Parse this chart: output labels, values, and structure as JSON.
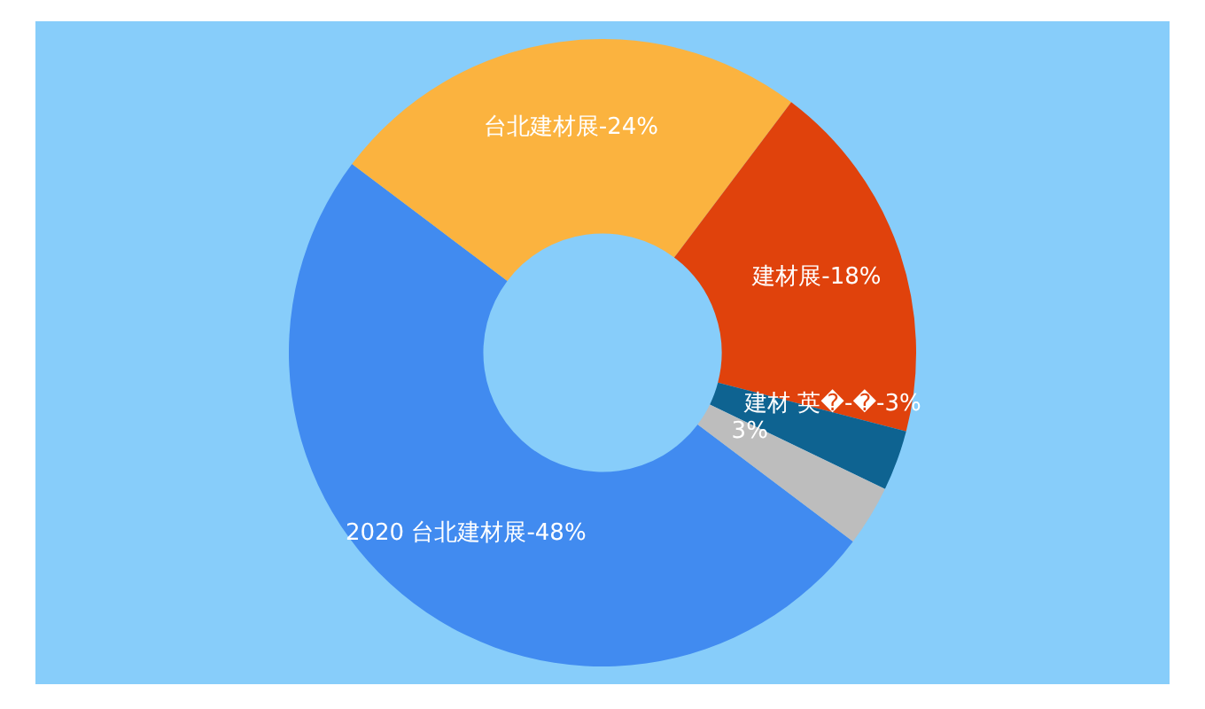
{
  "chart_data": {
    "type": "donut",
    "categories": [
      "2020 台北建材展-",
      "台北建材展-",
      "建材展-",
      "建材 英�-�-",
      null
    ],
    "values": [
      48,
      24,
      18,
      3,
      3
    ],
    "colors": [
      "#418bf0",
      "#fbb33f",
      "#e0420c",
      "#0e6391",
      "#bdbdbd"
    ],
    "value_labels": [
      "48%",
      "24%",
      "18%",
      "3%",
      "3%"
    ],
    "legend": false
  }
}
